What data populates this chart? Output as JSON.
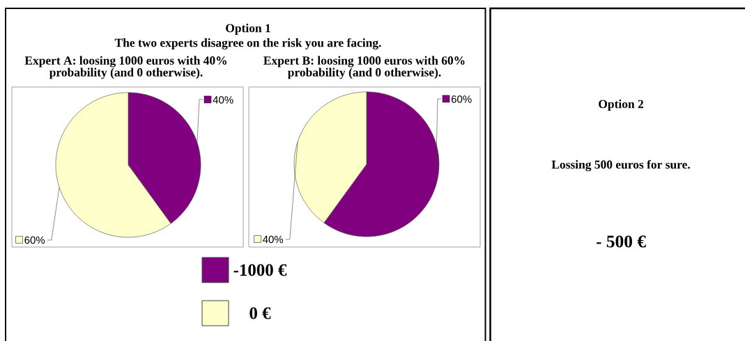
{
  "chart_data": [
    {
      "type": "other",
      "title": "Option 1",
      "subtitle": "The two experts disagree on the risk you are facing."
    },
    {
      "type": "pie",
      "title": "Expert A: loosing 1000 euros with 40% probability (and 0 otherwise).",
      "categories": [
        "-1000 €",
        "0 €"
      ],
      "values": [
        40,
        60
      ],
      "value_labels": [
        "40%",
        "60%"
      ],
      "colors": [
        "#800080",
        "#ffffcc"
      ],
      "legend": "bottom"
    },
    {
      "type": "pie",
      "title": "Expert B: loosing 1000 euros with 60% probability (and 0 otherwise).",
      "categories": [
        null,
        null
      ],
      "values": [
        60,
        40
      ],
      "value_labels": [
        "60%",
        "40%"
      ],
      "colors": [
        "#800080",
        "#ffffcc"
      ]
    },
    {
      "type": "other",
      "title": "Option 2",
      "annotations": [
        "Lossing 500 euros for sure.",
        "- 500 €"
      ]
    }
  ]
}
